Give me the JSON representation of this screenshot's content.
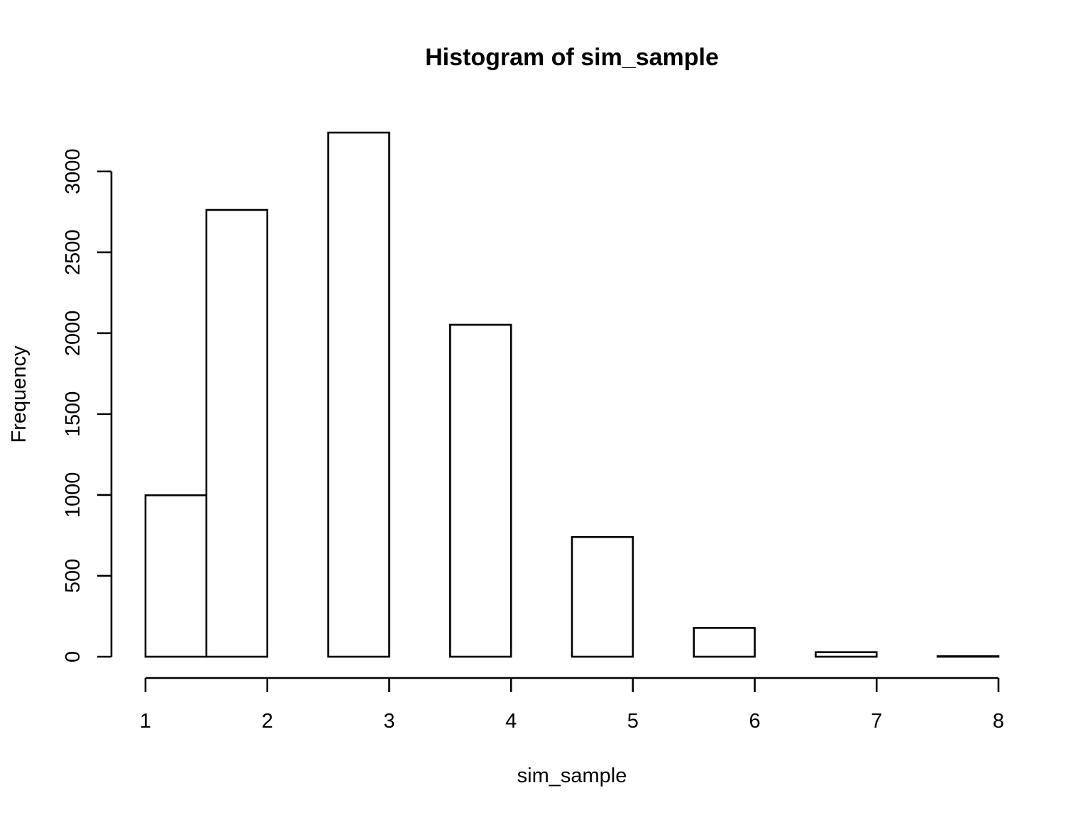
{
  "chart_data": {
    "type": "bar",
    "title": "Histogram of sim_sample",
    "xlabel": "sim_sample",
    "ylabel": "Frequency",
    "bins": [
      {
        "start": 1.0,
        "end": 1.5,
        "count": 998
      },
      {
        "start": 1.5,
        "end": 2.0,
        "count": 2762
      },
      {
        "start": 2.0,
        "end": 2.5,
        "count": 0
      },
      {
        "start": 2.5,
        "end": 3.0,
        "count": 3240
      },
      {
        "start": 3.0,
        "end": 3.5,
        "count": 0
      },
      {
        "start": 3.5,
        "end": 4.0,
        "count": 2052
      },
      {
        "start": 4.0,
        "end": 4.5,
        "count": 0
      },
      {
        "start": 4.5,
        "end": 5.0,
        "count": 740
      },
      {
        "start": 5.0,
        "end": 5.5,
        "count": 0
      },
      {
        "start": 5.5,
        "end": 6.0,
        "count": 178
      },
      {
        "start": 6.0,
        "end": 6.5,
        "count": 0
      },
      {
        "start": 6.5,
        "end": 7.0,
        "count": 28
      },
      {
        "start": 7.0,
        "end": 7.5,
        "count": 0
      },
      {
        "start": 7.5,
        "end": 8.0,
        "count": 3
      }
    ],
    "xlim": [
      1,
      8
    ],
    "ylim": [
      0,
      3240
    ],
    "xticks": [
      1,
      2,
      3,
      4,
      5,
      6,
      7,
      8
    ],
    "yticks": [
      0,
      500,
      1000,
      1500,
      2000,
      2500,
      3000
    ],
    "grid": false,
    "bar_fill": "#ffffff",
    "bar_stroke": "#000000"
  }
}
